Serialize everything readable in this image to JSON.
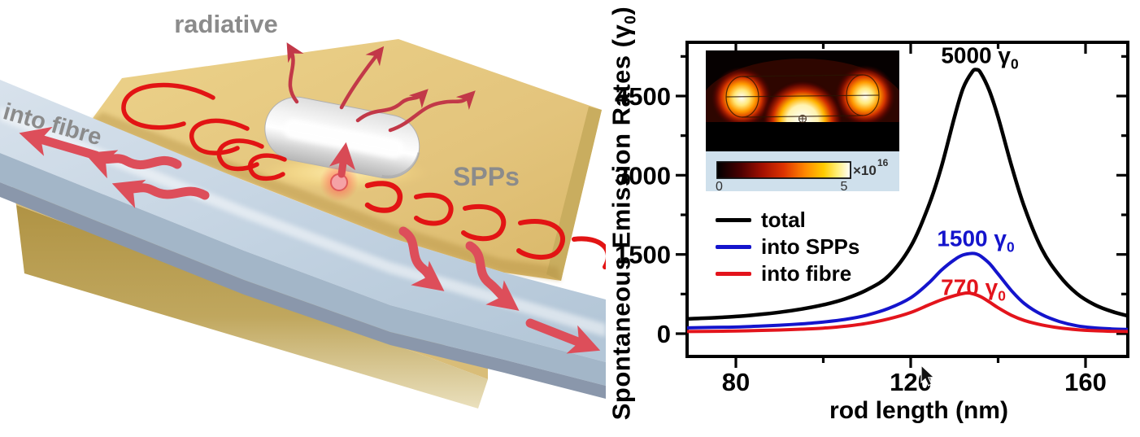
{
  "left_panel": {
    "radiative_label": "radiative",
    "into_fibre_label": "into fibre",
    "spps_label": "SPPs",
    "colors": {
      "gold_top": "#e3c47c",
      "fiber_top": "#c6d5e4",
      "nanorod": "#e9e9e9",
      "arrow_red": "#c23848",
      "spp_arc_red": "#e21414",
      "fiber_arrow_red": "#dd4e5a",
      "label_gray": "#8b8b8b"
    }
  },
  "chart_ui": {
    "y_title_prefix": "Spontaneous Emission Rates (",
    "y_title_gamma": "γ",
    "y_title_sub": "0",
    "y_title_suffix": ")",
    "x_title": "rod length (nm)",
    "legend": [
      {
        "label": "total"
      },
      {
        "label": "into SPPs"
      },
      {
        "label": "into fibre"
      }
    ],
    "annotations": [
      {
        "value": "5000 ",
        "gamma": "γ",
        "sub": "0"
      },
      {
        "value": "1500 ",
        "gamma": "γ",
        "sub": "0"
      },
      {
        "value": "770 ",
        "gamma": "γ",
        "sub": "0"
      }
    ],
    "inset": {
      "colorbar_min": "0",
      "colorbar_max": "5",
      "scale_prefix": "×10",
      "scale_exp": "16"
    }
  },
  "chart_data": {
    "type": "line",
    "title": "",
    "xlabel": "rod length (nm)",
    "ylabel": "Spontaneous Emission Rates (γ0)",
    "xlim": [
      69,
      170
    ],
    "ylim": [
      -430,
      5560
    ],
    "grid": false,
    "legend_position": "center-left inside",
    "x_major_ticks": [
      80,
      120,
      160
    ],
    "x_minor_ticks": [
      100,
      140
    ],
    "y_major_ticks": [
      0,
      1500,
      3000,
      4500
    ],
    "y_minor_ticks": [
      750,
      2250,
      3750,
      5250
    ],
    "series": [
      {
        "name": "total",
        "color": "#000000",
        "width": 4.5,
        "peak_label": "5000 γ0",
        "peak_x": 135,
        "peak_y": 5000,
        "points": [
          [
            69,
            280
          ],
          [
            75,
            300
          ],
          [
            80,
            325
          ],
          [
            85,
            360
          ],
          [
            90,
            405
          ],
          [
            95,
            465
          ],
          [
            100,
            545
          ],
          [
            105,
            660
          ],
          [
            110,
            830
          ],
          [
            115,
            1100
          ],
          [
            120,
            1650
          ],
          [
            124,
            2400
          ],
          [
            127,
            3150
          ],
          [
            130,
            4100
          ],
          [
            132,
            4650
          ],
          [
            134,
            4950
          ],
          [
            135,
            5000
          ],
          [
            136,
            4940
          ],
          [
            138,
            4600
          ],
          [
            140,
            4100
          ],
          [
            143,
            3200
          ],
          [
            146,
            2400
          ],
          [
            150,
            1600
          ],
          [
            154,
            1100
          ],
          [
            158,
            760
          ],
          [
            162,
            550
          ],
          [
            166,
            420
          ],
          [
            170,
            330
          ]
        ]
      },
      {
        "name": "into SPPs",
        "color": "#1414cc",
        "width": 4,
        "peak_label": "1500 γ0",
        "peak_x": 134,
        "peak_y": 1520,
        "points": [
          [
            69,
            110
          ],
          [
            75,
            118
          ],
          [
            80,
            125
          ],
          [
            85,
            140
          ],
          [
            90,
            160
          ],
          [
            95,
            185
          ],
          [
            100,
            220
          ],
          [
            105,
            270
          ],
          [
            110,
            350
          ],
          [
            115,
            480
          ],
          [
            120,
            680
          ],
          [
            124,
            950
          ],
          [
            127,
            1200
          ],
          [
            130,
            1400
          ],
          [
            132,
            1490
          ],
          [
            134,
            1520
          ],
          [
            135,
            1510
          ],
          [
            136,
            1470
          ],
          [
            138,
            1330
          ],
          [
            140,
            1130
          ],
          [
            143,
            820
          ],
          [
            146,
            570
          ],
          [
            150,
            360
          ],
          [
            154,
            230
          ],
          [
            158,
            150
          ],
          [
            162,
            110
          ],
          [
            166,
            90
          ],
          [
            170,
            80
          ]
        ]
      },
      {
        "name": "into fibre",
        "color": "#e3141c",
        "width": 4,
        "peak_label": "770 γ0",
        "peak_x": 133,
        "peak_y": 770,
        "points": [
          [
            69,
            40
          ],
          [
            75,
            45
          ],
          [
            80,
            50
          ],
          [
            85,
            60
          ],
          [
            90,
            70
          ],
          [
            95,
            85
          ],
          [
            100,
            105
          ],
          [
            105,
            140
          ],
          [
            110,
            195
          ],
          [
            115,
            280
          ],
          [
            120,
            400
          ],
          [
            124,
            540
          ],
          [
            127,
            640
          ],
          [
            130,
            720
          ],
          [
            132,
            760
          ],
          [
            133,
            770
          ],
          [
            134,
            760
          ],
          [
            136,
            700
          ],
          [
            138,
            600
          ],
          [
            140,
            490
          ],
          [
            143,
            350
          ],
          [
            146,
            250
          ],
          [
            150,
            165
          ],
          [
            154,
            110
          ],
          [
            158,
            75
          ],
          [
            162,
            55
          ],
          [
            166,
            45
          ],
          [
            170,
            40
          ]
        ]
      }
    ],
    "inset_colorbar": {
      "min": 0,
      "max": 5,
      "scale": "1e16"
    }
  }
}
